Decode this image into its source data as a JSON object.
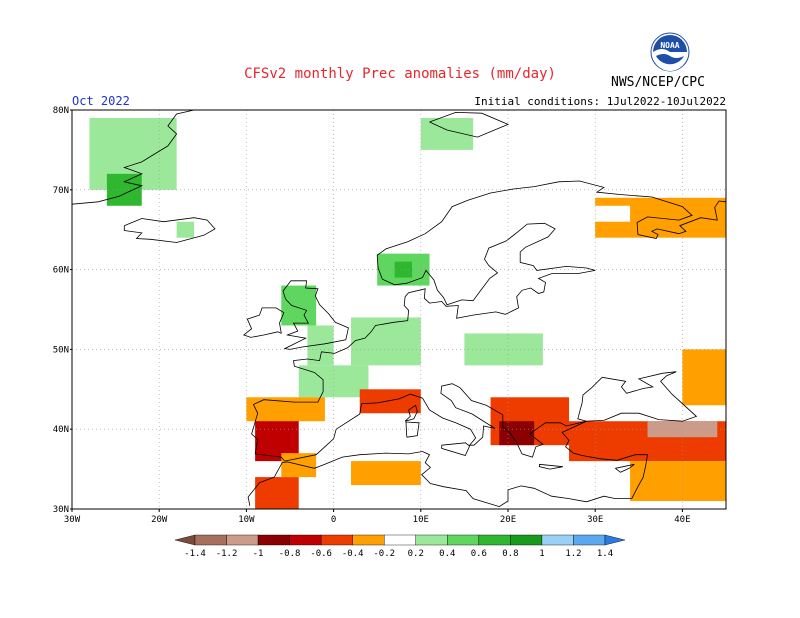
{
  "title": "CFSv2 monthly Prec anomalies (mm/day)",
  "org": "NWS/NCEP/CPC",
  "logo_text": "NOAA",
  "month": "Oct 2022",
  "initial_conditions": "Initial conditions: 1Jul2022-10Jul2022",
  "colors": {
    "title": "#e8262c",
    "border": "#000000",
    "grid": "#999999"
  },
  "map": {
    "lon_range": [
      -30,
      45
    ],
    "lat_range": [
      30,
      80
    ],
    "lat_labels": [
      "80N",
      "70N",
      "60N",
      "50N",
      "40N",
      "30N"
    ],
    "lon_labels": [
      "30W",
      "20W",
      "10W",
      "0",
      "10E",
      "20E",
      "30E",
      "40E"
    ]
  },
  "colorbar": {
    "labels": [
      "-1.4",
      "-1.2",
      "-1",
      "-0.8",
      "-0.6",
      "-0.4",
      "-0.2",
      "0.2",
      "0.4",
      "0.6",
      "0.8",
      "1",
      "1.2",
      "1.4"
    ],
    "colors": [
      "#7a4b3a",
      "#a6705c",
      "#cc9b8a",
      "#8b0000",
      "#c00000",
      "#ee3b00",
      "#ff9f00",
      "#ffffff",
      "#9be89b",
      "#5fd65f",
      "#2fb82f",
      "#1a9a1a",
      "#9ad0f5",
      "#5aa9f0",
      "#2a7ae0"
    ]
  },
  "chart_data": {
    "type": "heatmap",
    "variable": "monthly Prec anomalies (mm/day)",
    "x_range": [
      -30,
      45
    ],
    "y_range": [
      30,
      80
    ],
    "cells": [
      {
        "lon": [
          -28,
          -18
        ],
        "lat": [
          70,
          79
        ],
        "value": 0.3
      },
      {
        "lon": [
          -26,
          -22
        ],
        "lat": [
          68,
          72
        ],
        "value": 0.6
      },
      {
        "lon": [
          -18,
          -16
        ],
        "lat": [
          64,
          66
        ],
        "value": 0.3
      },
      {
        "lon": [
          5,
          11
        ],
        "lat": [
          58,
          62
        ],
        "value": 0.4
      },
      {
        "lon": [
          7,
          9
        ],
        "lat": [
          59,
          61
        ],
        "value": 0.6
      },
      {
        "lon": [
          -6,
          -2
        ],
        "lat": [
          53,
          58
        ],
        "value": 0.4
      },
      {
        "lon": [
          -3,
          0
        ],
        "lat": [
          48,
          53
        ],
        "value": 0.3
      },
      {
        "lon": [
          2,
          10
        ],
        "lat": [
          48,
          54
        ],
        "value": 0.3
      },
      {
        "lon": [
          15,
          24
        ],
        "lat": [
          48,
          52
        ],
        "value": 0.3
      },
      {
        "lon": [
          -4,
          4
        ],
        "lat": [
          44,
          48
        ],
        "value": 0.3
      },
      {
        "lon": [
          10,
          16
        ],
        "lat": [
          75,
          79
        ],
        "value": 0.3
      },
      {
        "lon": [
          -9,
          -4
        ],
        "lat": [
          36,
          42
        ],
        "value": -0.8
      },
      {
        "lon": [
          -10,
          -1
        ],
        "lat": [
          41,
          44
        ],
        "value": -0.4
      },
      {
        "lon": [
          -9,
          -4
        ],
        "lat": [
          30,
          34
        ],
        "value": -0.6
      },
      {
        "lon": [
          -6,
          -2
        ],
        "lat": [
          34,
          37
        ],
        "value": -0.4
      },
      {
        "lon": [
          2,
          10
        ],
        "lat": [
          33,
          36
        ],
        "value": -0.4
      },
      {
        "lon": [
          12,
          15
        ],
        "lat": [
          31,
          33
        ],
        "value": -0.2
      },
      {
        "lon": [
          3,
          10
        ],
        "lat": [
          42,
          45
        ],
        "value": -0.6
      },
      {
        "lon": [
          18,
          27
        ],
        "lat": [
          38,
          44
        ],
        "value": -0.6
      },
      {
        "lon": [
          19,
          23
        ],
        "lat": [
          38,
          41
        ],
        "value": -1.0
      },
      {
        "lon": [
          27,
          45
        ],
        "lat": [
          36,
          41
        ],
        "value": -0.6
      },
      {
        "lon": [
          36,
          44
        ],
        "lat": [
          39,
          41
        ],
        "value": -1.2
      },
      {
        "lon": [
          34,
          45
        ],
        "lat": [
          31,
          36
        ],
        "value": -0.4
      },
      {
        "lon": [
          40,
          45
        ],
        "lat": [
          43,
          50
        ],
        "value": -0.4
      },
      {
        "lon": [
          30,
          45
        ],
        "lat": [
          64,
          69
        ],
        "value": -0.4
      },
      {
        "lon": [
          25,
          35
        ],
        "lat": [
          70,
          72
        ],
        "value": -0.2
      },
      {
        "lon": [
          30,
          34
        ],
        "lat": [
          66,
          68
        ],
        "value": -0.2
      }
    ]
  }
}
